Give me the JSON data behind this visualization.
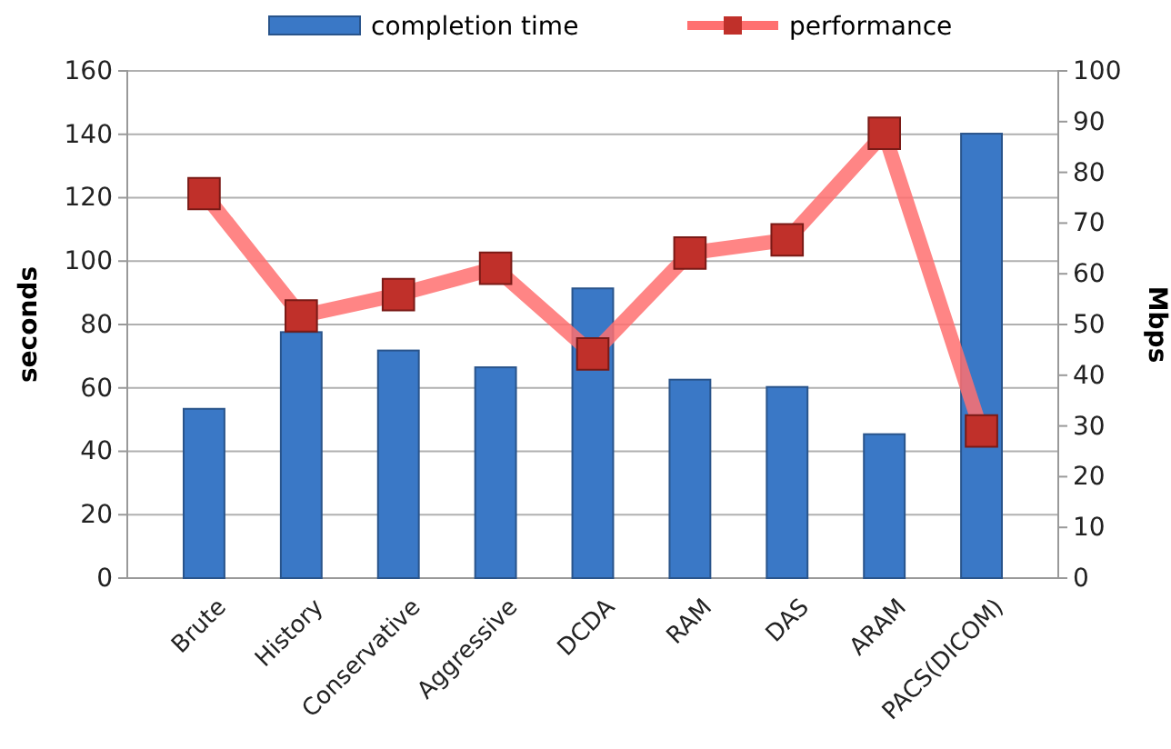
{
  "chart_data": {
    "type": "bar",
    "categories": [
      "Brute",
      "History",
      "Conservative",
      "Aggressive",
      "DCDA",
      "RAM",
      "DAS",
      "ARAM",
      "PACS(DICOM)"
    ],
    "ylabel": "seconds",
    "y2label": "Mbps",
    "ylim": [
      0,
      160
    ],
    "yticks": [
      0,
      20,
      40,
      60,
      80,
      100,
      120,
      140,
      160
    ],
    "y2lim": [
      0,
      100
    ],
    "y2ticks": [
      0,
      10,
      20,
      30,
      40,
      50,
      60,
      70,
      80,
      90,
      100
    ],
    "grid": "y",
    "legend": "top",
    "marker": "square",
    "series": [
      {
        "name": "completion time",
        "color": "#3a78c6",
        "values": [
          53.4,
          77.6,
          71.8,
          66.5,
          91.4,
          62.6,
          60.3,
          45.4,
          140.2
        ]
      },
      {
        "name": "performance",
        "type": "line",
        "axis": "y2",
        "color": "#ff7070",
        "values": [
          75.8,
          51.7,
          55.9,
          61.1,
          44.2,
          64.1,
          66.7,
          87.7,
          29
        ]
      }
    ]
  }
}
